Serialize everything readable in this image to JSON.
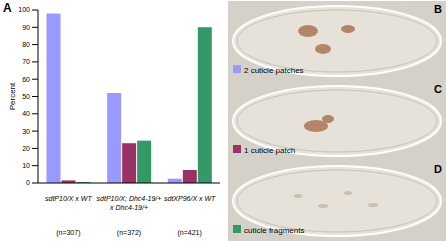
{
  "chart_data": {
    "type": "bar",
    "y_label": "Percent",
    "categories": [
      "sdtP10/X x WT",
      "sdtP10/X; Dhc4-19/+ x Dhc4-19/+",
      "sdtXP96/X x WT"
    ],
    "sample_sizes": [
      "(n=307)",
      "(n=372)",
      "(n=421)"
    ],
    "series": [
      {
        "name": "2 cuticle patches",
        "color": "#9999ff",
        "values": [
          98,
          52,
          2.5
        ]
      },
      {
        "name": "1 cuticle patch",
        "color": "#993366",
        "values": [
          1.5,
          23,
          7.5
        ]
      },
      {
        "name": "cuticle fragments",
        "color": "#339966",
        "values": [
          0.5,
          24.5,
          90
        ]
      }
    ],
    "ylim": [
      0,
      100
    ],
    "yticks": [
      0,
      10,
      20,
      30,
      40,
      50,
      60,
      70,
      80,
      90,
      100
    ],
    "grid": false
  },
  "panel_labels": [
    "A",
    "B",
    "C",
    "D"
  ]
}
